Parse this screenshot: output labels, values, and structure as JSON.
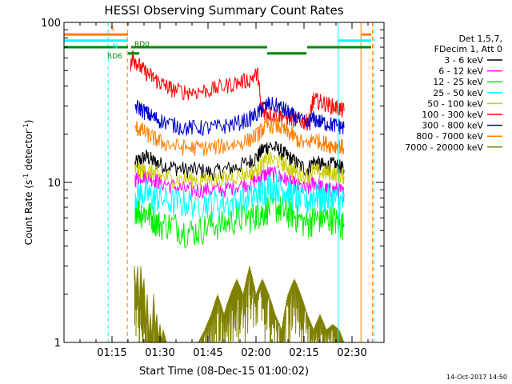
{
  "chart_data": {
    "type": "line",
    "title": "HESSI Observing Summary Count Rates",
    "xlabel": "Start Time (08-Dec-15 01:00:02)",
    "ylabel": "Count Rate (s⁻¹ detector⁻¹)",
    "ylabel_main": "Count Rate (s",
    "ylabel_sup1": "-1",
    "ylabel_mid": " detector",
    "ylabel_sup2": "-1",
    "ylabel_end": ")",
    "x_unit": "minutes after 01:00:02",
    "xlim": [
      0,
      100
    ],
    "ylim": [
      1,
      100
    ],
    "yscale": "log",
    "grid": false,
    "legend_position": "right",
    "xticks": [
      {
        "value": 15,
        "label": "01:15"
      },
      {
        "value": 30,
        "label": "01:30"
      },
      {
        "value": 45,
        "label": "01:45"
      },
      {
        "value": 60,
        "label": "02:00"
      },
      {
        "value": 75,
        "label": "02:15"
      },
      {
        "value": 90,
        "label": "02:30"
      }
    ],
    "yticks": [
      {
        "value": 1,
        "label": "1"
      },
      {
        "value": 10,
        "label": "10"
      },
      {
        "value": 100,
        "label": "100"
      }
    ],
    "legend_header": [
      "Det 1,5,7,",
      "FDecim 1, Att 0"
    ],
    "series": [
      {
        "name": "3 - 6 keV",
        "color": "#000000",
        "x": [
          22.2,
          24,
          26,
          28,
          30,
          34,
          38,
          42,
          46,
          50,
          54,
          58,
          60.5,
          62,
          64,
          67,
          69,
          71,
          73,
          76,
          78,
          80,
          82,
          84,
          86,
          87.5
        ],
        "y": [
          13,
          14,
          14.5,
          13.5,
          13,
          12.5,
          12,
          12,
          11.5,
          12,
          12.5,
          13.5,
          14.5,
          16,
          17,
          16,
          15,
          14,
          13,
          12,
          13.5,
          13,
          12.5,
          13,
          12.5,
          12
        ]
      },
      {
        "name": "6 - 12 keV",
        "color": "#ff00ff",
        "x": [
          22.2,
          24,
          26,
          28,
          30,
          34,
          38,
          42,
          46,
          50,
          54,
          58,
          60.5,
          62,
          64,
          67,
          69,
          71,
          73,
          76,
          78,
          80,
          82,
          84,
          86,
          87.5
        ],
        "y": [
          10.5,
          11,
          11,
          10.5,
          10,
          9.5,
          9,
          9,
          9,
          9,
          9.5,
          10,
          10.5,
          11,
          11.5,
          11,
          10.5,
          10,
          9.5,
          9,
          10,
          9.5,
          9,
          9,
          9,
          8.5
        ]
      },
      {
        "name": "12 - 25 keV",
        "color": "#00ee00",
        "x": [
          22.2,
          24,
          26,
          28,
          30,
          34,
          38,
          42,
          46,
          50,
          54,
          58,
          60.5,
          62,
          64,
          67,
          69,
          71,
          73,
          76,
          78,
          80,
          82,
          84,
          86,
          87.5
        ],
        "y": [
          7,
          6.5,
          6.5,
          6,
          5.5,
          5.5,
          5,
          5,
          5.5,
          5.5,
          6,
          6,
          6.5,
          6.5,
          7,
          7,
          6.5,
          6.5,
          6,
          5.5,
          6,
          6,
          6,
          6,
          5.5,
          5.5
        ]
      },
      {
        "name": "25 - 50 keV",
        "color": "#00ffff",
        "x": [
          22.2,
          24,
          26,
          28,
          30,
          34,
          38,
          42,
          46,
          50,
          54,
          58,
          60.5,
          62,
          64,
          67,
          69,
          71,
          73,
          76,
          78,
          80,
          82,
          84,
          86,
          87.5
        ],
        "y": [
          8.5,
          8.5,
          8.5,
          8,
          8,
          7.5,
          7.5,
          7.5,
          7.5,
          7.5,
          7.5,
          8,
          8.5,
          9,
          9.5,
          9.5,
          9,
          8.5,
          8,
          7.5,
          8.5,
          8,
          8,
          8,
          7.5,
          7.5
        ]
      },
      {
        "name": "50 - 100 keV",
        "color": "#cccc00",
        "x": [
          22.2,
          24,
          26,
          28,
          30,
          34,
          38,
          42,
          46,
          50,
          54,
          58,
          60.5,
          62,
          64,
          67,
          69,
          71,
          73,
          76,
          78,
          80,
          82,
          84,
          86,
          87.5
        ],
        "y": [
          12,
          12,
          12,
          11.5,
          11,
          10.5,
          10.5,
          10.5,
          10.5,
          10.5,
          11,
          11.5,
          12,
          13,
          14,
          13.5,
          13,
          12,
          11.5,
          11,
          12,
          11.5,
          11.5,
          11.5,
          11,
          11
        ]
      },
      {
        "name": "100 - 300 keV",
        "color": "#ff0000",
        "x": [
          20.8,
          21.5,
          22.2,
          24,
          26,
          28,
          30,
          32,
          34,
          38,
          42,
          46,
          50,
          54,
          58,
          60.5,
          61.5,
          62.5,
          64,
          67,
          69,
          71,
          73,
          75,
          76.5,
          77.5,
          78,
          80,
          82,
          84,
          86,
          87.5
        ],
        "y": [
          55,
          62,
          58,
          52,
          48,
          45,
          42,
          40,
          38,
          37,
          37,
          38,
          40,
          42,
          44,
          48,
          30,
          28,
          27,
          26.5,
          26,
          25,
          24.5,
          24,
          24,
          30,
          33,
          32,
          31,
          30,
          29,
          28
        ]
      },
      {
        "name": "300 - 800 keV",
        "color": "#0000cc",
        "x": [
          22.2,
          24,
          26,
          28,
          30,
          34,
          38,
          42,
          46,
          50,
          54,
          58,
          60.5,
          62,
          64,
          67,
          69,
          71,
          73,
          76,
          78,
          80,
          82,
          84,
          86,
          87.5
        ],
        "y": [
          30,
          29,
          27,
          25.5,
          24.5,
          23,
          22,
          22,
          22,
          22.5,
          23.5,
          25,
          27,
          29,
          31,
          30,
          28.5,
          26.5,
          25,
          23,
          25,
          24,
          23.5,
          23,
          22.5,
          22
        ]
      },
      {
        "name": "800 - 7000 keV",
        "color": "#ff7f00",
        "x": [
          22.2,
          24,
          26,
          28,
          30,
          34,
          38,
          42,
          46,
          50,
          54,
          58,
          60.5,
          62,
          64,
          67,
          69,
          71,
          73,
          76,
          78,
          80,
          82,
          84,
          86,
          87.5
        ],
        "y": [
          22,
          21.5,
          20,
          19,
          18,
          17,
          16.5,
          16.5,
          16.5,
          17,
          17.5,
          18.5,
          20,
          21.5,
          23,
          22.5,
          21,
          20,
          18.5,
          17,
          19,
          18,
          17.5,
          17,
          17,
          16.5
        ]
      },
      {
        "name": "7000 - 20000 keV",
        "color": "#808000",
        "x": [
          22,
          22.5,
          23,
          23.5,
          24,
          24.5,
          25,
          25.5,
          26,
          26.5,
          27,
          27.5,
          28,
          28.5,
          29,
          29.5,
          30,
          30.5,
          31,
          32,
          34,
          36,
          38,
          40,
          42,
          44,
          46,
          48,
          50,
          52,
          54,
          56,
          58,
          60,
          62,
          64,
          66,
          68,
          70,
          72,
          74,
          76,
          78,
          80,
          82,
          84,
          86,
          87.5
        ],
        "y": [
          3,
          2,
          3,
          1.5,
          3,
          2,
          2.5,
          1.2,
          2,
          1,
          1.5,
          1,
          2,
          1.2,
          1.5,
          1,
          1.3,
          1,
          1.2,
          1,
          1,
          1,
          1,
          1,
          1,
          1.2,
          1.5,
          2,
          1.5,
          2,
          2.5,
          2,
          3,
          2,
          2.5,
          2,
          1.5,
          1.2,
          2,
          2.5,
          2,
          1.5,
          1.2,
          1.5,
          1.2,
          1.3,
          1.2,
          1
        ]
      }
    ],
    "status_bars": [
      {
        "label": "S",
        "color": "#ff7f00",
        "segments": [
          [
            0,
            20
          ],
          [
            93,
            96
          ]
        ],
        "level": 84
      },
      {
        "label": "N",
        "color": "#00ffff",
        "segments": [
          [
            0,
            20
          ],
          [
            85.7,
            96
          ]
        ],
        "level": 77
      },
      {
        "label": "RD0",
        "color": "#008800",
        "segments": [
          [
            0,
            20
          ],
          [
            21,
            63.5
          ],
          [
            76,
            96
          ]
        ],
        "level": 70
      },
      {
        "label": "RD6",
        "color": "#008800",
        "segments": [
          [
            20,
            23.5
          ],
          [
            63.5,
            75.8
          ]
        ],
        "level": 64
      }
    ],
    "vertical_markers": [
      {
        "x": 13.8,
        "color": "#00ffff",
        "style": "dashed"
      },
      {
        "x": 19.8,
        "color": "#ff7f00",
        "style": "dashed"
      },
      {
        "x": 85.7,
        "color": "#00ffff",
        "style": "solid"
      },
      {
        "x": 92.8,
        "color": "#ff7f00",
        "style": "solid"
      },
      {
        "x": 96.8,
        "color": "#00ffff",
        "style": "dashed"
      },
      {
        "x": 96.4,
        "color": "#ff7f00",
        "style": "dashed"
      }
    ]
  },
  "footer": {
    "timestamp": "14-Oct-2017 14:50"
  }
}
